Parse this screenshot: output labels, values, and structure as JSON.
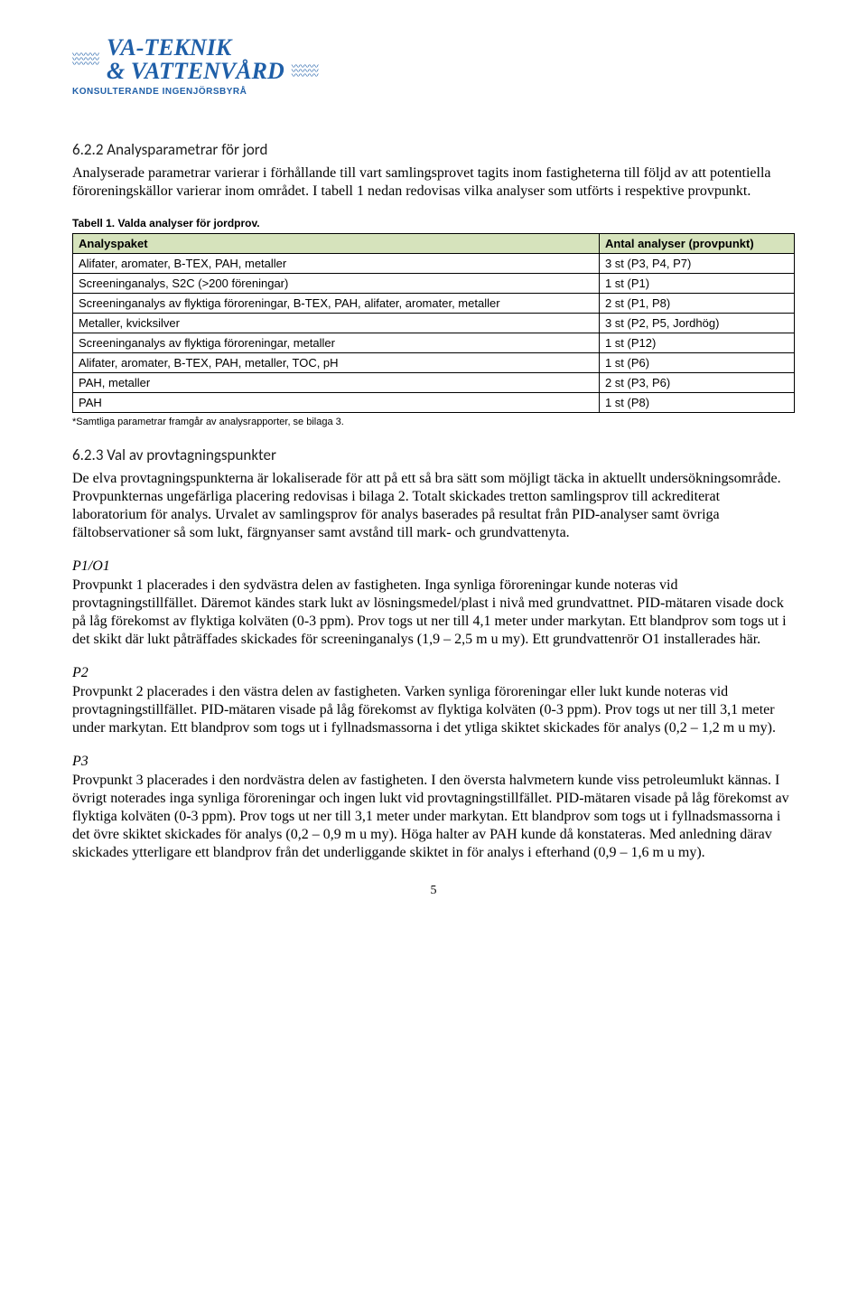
{
  "logo": {
    "line1": "VA-TEKNIK",
    "line2": "& VATTENVÅRD",
    "sub": "KONSULTERANDE INGENJÖRSBYRÅ"
  },
  "sec1": {
    "heading": "6.2.2 Analysparametrar för jord",
    "para": "Analyserade parametrar varierar i förhållande till vart samlingsprovet tagits inom fastigheterna till följd av att potentiella föroreningskällor varierar inom området. I tabell 1 nedan redovisas vilka analyser som utförts i respektive provpunkt."
  },
  "table": {
    "caption": "Tabell 1. Valda analyser för jordprov.",
    "header_col1": "Analyspaket",
    "header_col2": "Antal analyser (provpunkt)",
    "rows": [
      {
        "c1": "Alifater, aromater, B-TEX, PAH, metaller",
        "c2": "3 st (P3, P4, P7)"
      },
      {
        "c1": "Screeninganalys, S2C (>200 föreningar)",
        "c2": "1 st (P1)"
      },
      {
        "c1": "Screeninganalys av flyktiga föroreningar, B-TEX, PAH, alifater, aromater, metaller",
        "c2": "2 st (P1, P8)"
      },
      {
        "c1": "Metaller, kvicksilver",
        "c2": "3 st (P2, P5, Jordhög)"
      },
      {
        "c1": "Screeninganalys av flyktiga föroreningar, metaller",
        "c2": "1 st (P12)"
      },
      {
        "c1": "Alifater, aromater, B-TEX, PAH, metaller, TOC, pH",
        "c2": "1 st (P6)"
      },
      {
        "c1": "PAH, metaller",
        "c2": "2 st (P3, P6)"
      },
      {
        "c1": "PAH",
        "c2": "1 st (P8)"
      }
    ],
    "note": "*Samtliga parametrar framgår av analysrapporter, se bilaga 3."
  },
  "sec2": {
    "heading": "6.2.3 Val av provtagningspunkter",
    "para": "De elva provtagningspunkterna är lokaliserade för att på ett så bra sätt som möjligt täcka in aktuellt undersökningsområde. Provpunkternas ungefärliga placering redovisas i bilaga 2. Totalt skickades tretton samlingsprov till ackrediterat laboratorium för analys. Urvalet av samlingsprov för analys baserades på resultat från PID-analyser samt övriga fältobservationer så som lukt, färgnyanser samt avstånd till mark- och grundvattenyta."
  },
  "p1": {
    "title": "P1/O1",
    "para": "Provpunkt 1 placerades i den sydvästra delen av fastigheten. Inga synliga föroreningar kunde noteras vid provtagningstillfället. Däremot kändes stark lukt av lösningsmedel/plast i nivå med grundvattnet. PID-mätaren visade dock på låg förekomst av flyktiga kolväten (0-3 ppm). Prov togs ut ner till 4,1 meter under markytan. Ett blandprov som togs ut i det skikt där lukt påträffades skickades för screeninganalys (1,9 – 2,5 m u my). Ett grundvattenrör O1 installerades här."
  },
  "p2": {
    "title": "P2",
    "para": "Provpunkt 2 placerades i den västra delen av fastigheten. Varken synliga föroreningar eller lukt kunde noteras vid provtagningstillfället. PID-mätaren visade på låg förekomst av flyktiga kolväten (0-3 ppm). Prov togs ut ner till 3,1 meter under markytan. Ett blandprov som togs ut i fyllnadsmassorna i det ytliga skiktet skickades för analys (0,2 – 1,2 m u my)."
  },
  "p3": {
    "title": "P3",
    "para": "Provpunkt 3 placerades i den nordvästra delen av fastigheten. I den översta halvmetern kunde viss petroleumlukt kännas. I övrigt noterades inga synliga föroreningar och ingen lukt vid provtagningstillfället. PID-mätaren visade på låg förekomst av flyktiga kolväten (0-3 ppm). Prov togs ut ner till 3,1 meter under markytan. Ett blandprov som togs ut i fyllnadsmassorna i det övre skiktet skickades för analys (0,2 – 0,9 m u my). Höga halter av PAH kunde då konstateras. Med anledning därav skickades ytterligare ett blandprov från det underliggande skiktet in för analys i efterhand (0,9 – 1,6 m u my)."
  },
  "page_number": "5",
  "colors": {
    "header_bg": "#d6e3bc",
    "brand": "#1f5fa8"
  }
}
